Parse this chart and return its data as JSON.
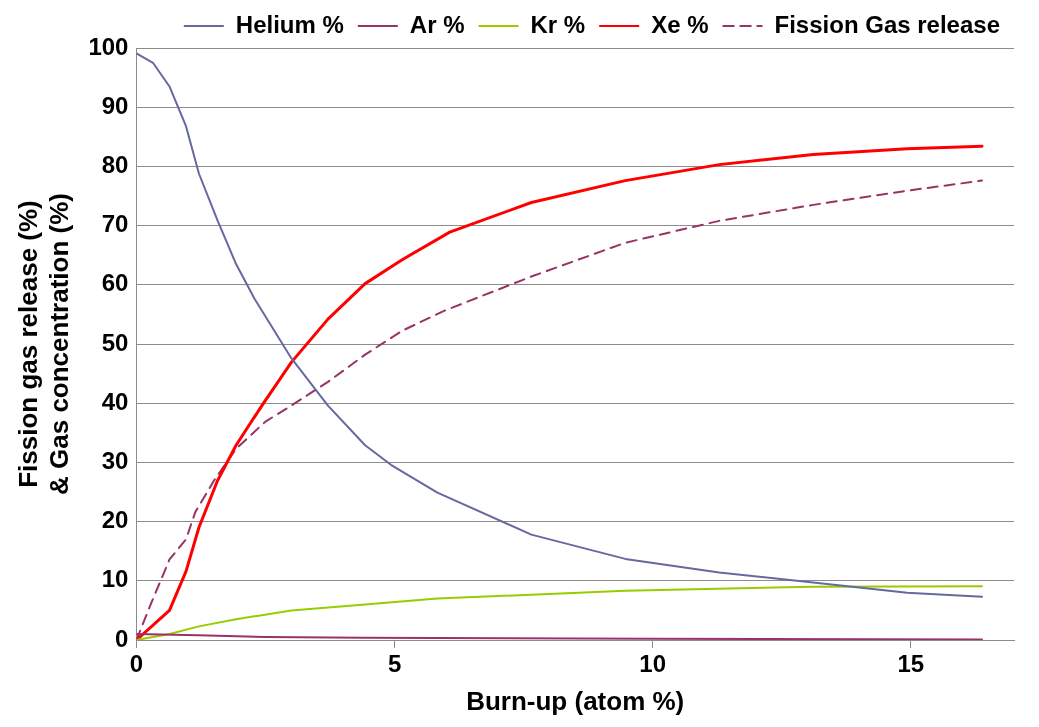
{
  "chart_data": {
    "type": "line",
    "xlabel": "Burn-up (atom %)",
    "ylabel": "Fission gas release (%) & Gas concentration (%)",
    "xlim": [
      0,
      17
    ],
    "xticks": [
      0,
      5,
      10,
      15
    ],
    "ylim": [
      0,
      100
    ],
    "yticks": [
      0,
      10,
      20,
      30,
      40,
      50,
      60,
      70,
      80,
      90,
      100
    ],
    "grid": "y",
    "legend": "top",
    "marker": "none",
    "series": [
      {
        "name": "Helium %",
        "color": "#6668a0",
        "x": [
          0,
          0.32,
          0.64,
          0.96,
          1.21,
          1.57,
          1.93,
          2.29,
          3.0,
          3.71,
          4.43,
          4.93,
          5.83,
          7.65,
          9.47,
          11.29,
          13.11,
          14.93,
          16.38
        ],
        "values": [
          99.1,
          97.5,
          93.5,
          86.8,
          78.8,
          70.9,
          63.5,
          57.6,
          47.6,
          39.6,
          32.9,
          29.6,
          24.9,
          17.8,
          13.7,
          11.4,
          9.7,
          8.0,
          7.3
        ]
      },
      {
        "name": "Ar %",
        "color": "#993366",
        "x": [
          0,
          1.2,
          2.5,
          4.4,
          10,
          16.38
        ],
        "values": [
          1,
          0.8,
          0.5,
          0.4,
          0.2,
          0.1
        ]
      },
      {
        "name": "Kr %",
        "color": "#99cc00",
        "x": [
          0,
          0.64,
          1.21,
          1.93,
          3.0,
          4.43,
          5.83,
          9.47,
          13.11,
          16.38
        ],
        "values": [
          0,
          1,
          2.3,
          3.5,
          5,
          6,
          7,
          8.3,
          9.0,
          9.1
        ]
      },
      {
        "name": "Xe %",
        "color": "#ff0000",
        "x": [
          0,
          0.64,
          0.96,
          1.21,
          1.57,
          1.93,
          2.43,
          3.0,
          3.71,
          4.43,
          5.14,
          6.07,
          7.65,
          9.47,
          11.29,
          13.11,
          14.93,
          16.38
        ],
        "values": [
          0,
          5,
          11.6,
          19,
          26.9,
          32.9,
          39.6,
          46.9,
          54.2,
          60.2,
          64.2,
          68.9,
          73.9,
          77.6,
          80.3,
          82,
          83,
          83.4
        ]
      },
      {
        "name": "Fission Gas release",
        "color": "#993366",
        "line_style": "dashed",
        "x": [
          0,
          0.29,
          0.64,
          0.96,
          1.14,
          1.5,
          1.93,
          2.5,
          3.0,
          3.71,
          4.43,
          5.14,
          5.96,
          7.65,
          9.47,
          11.29,
          13.11,
          14.93,
          16.38
        ],
        "values": [
          0,
          6.3,
          13.6,
          17,
          21.6,
          26.9,
          32.3,
          36.9,
          39.6,
          43.6,
          48.2,
          52.2,
          55.6,
          61.4,
          67.1,
          70.8,
          73.5,
          75.9,
          77.6
        ]
      }
    ]
  }
}
